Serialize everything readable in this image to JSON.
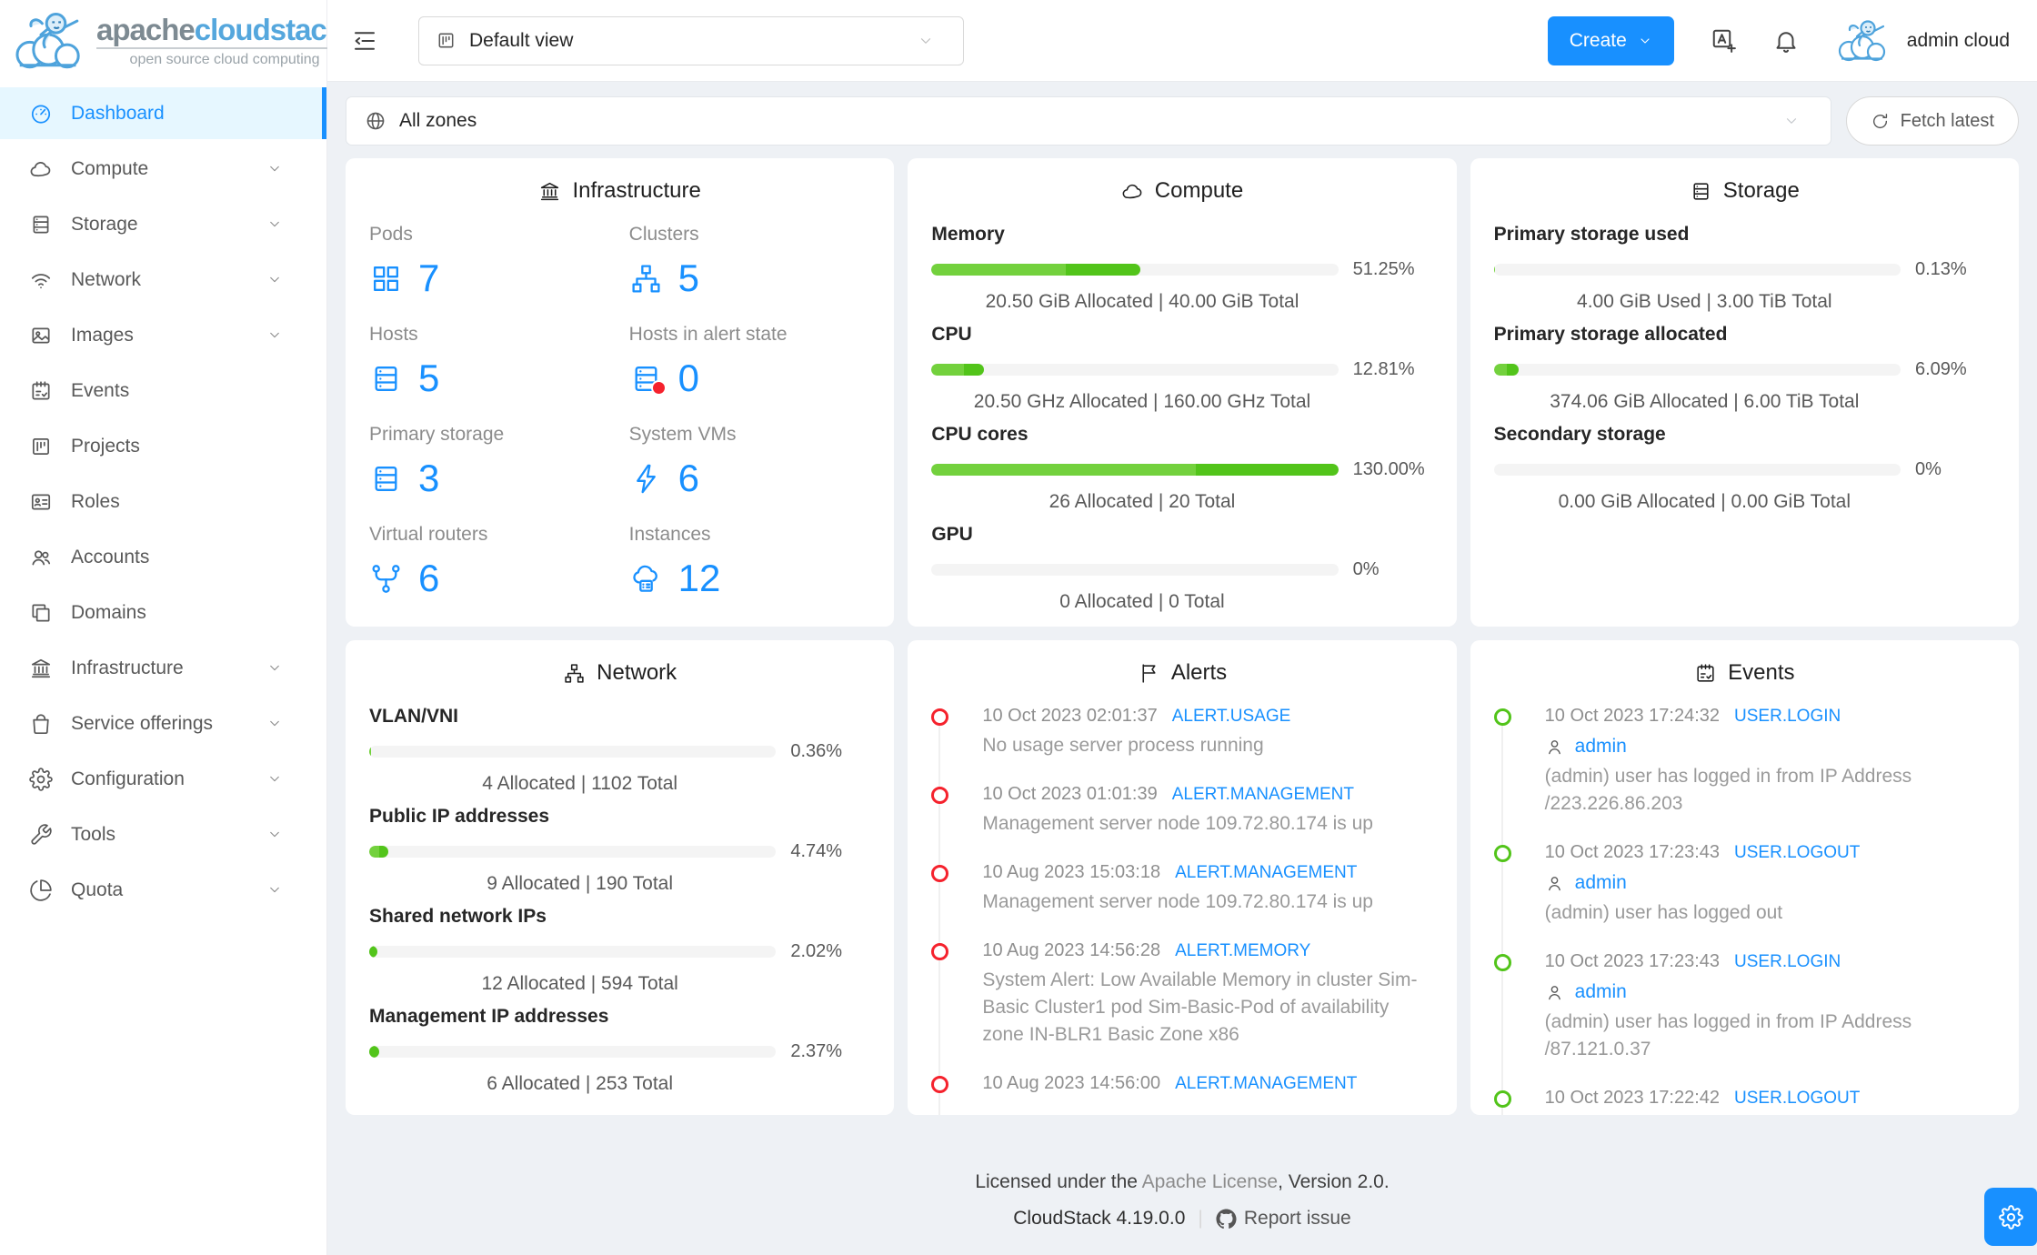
{
  "brand": {
    "title_gray": "apache",
    "title_blue": "cloudstack",
    "tm": "™",
    "subtitle": "open source cloud computing"
  },
  "colors": {
    "accent": "#1890ff",
    "progress_light": "#73d13d",
    "progress_dark": "#52c41a",
    "alert_dot": "#f5222d",
    "event_dot": "#52c41a",
    "active_bg": "#e6f7ff"
  },
  "sidebar": {
    "items": [
      {
        "label": "Dashboard"
      },
      {
        "label": "Compute"
      },
      {
        "label": "Storage"
      },
      {
        "label": "Network"
      },
      {
        "label": "Images"
      },
      {
        "label": "Events"
      },
      {
        "label": "Projects"
      },
      {
        "label": "Roles"
      },
      {
        "label": "Accounts"
      },
      {
        "label": "Domains"
      },
      {
        "label": "Infrastructure"
      },
      {
        "label": "Service offerings"
      },
      {
        "label": "Configuration"
      },
      {
        "label": "Tools"
      },
      {
        "label": "Quota"
      }
    ]
  },
  "topbar": {
    "view_select": "Default view",
    "create_label": "Create",
    "user_name": "admin cloud"
  },
  "zonebar": {
    "zone_select": "All zones",
    "fetch_label": "Fetch latest"
  },
  "cards": {
    "infrastructure": {
      "title": "Infrastructure",
      "stats": [
        {
          "label": "Pods",
          "value": "7"
        },
        {
          "label": "Clusters",
          "value": "5"
        },
        {
          "label": "Hosts",
          "value": "5"
        },
        {
          "label": "Hosts in alert state",
          "value": "0"
        },
        {
          "label": "Primary storage",
          "value": "3"
        },
        {
          "label": "System VMs",
          "value": "6"
        },
        {
          "label": "Virtual routers",
          "value": "6"
        },
        {
          "label": "Instances",
          "value": "12"
        }
      ]
    },
    "compute": {
      "title": "Compute",
      "metrics": [
        {
          "label": "Memory",
          "pct": "51.25%",
          "detail": "20.50 GiB Allocated | 40.00 GiB Total",
          "segments": {
            "light": 33,
            "dark": 18.25
          }
        },
        {
          "label": "CPU",
          "pct": "12.81%",
          "detail": "20.50 GHz Allocated | 160.00 GHz Total",
          "segments": {
            "light": 8,
            "dark": 4.81
          }
        },
        {
          "label": "CPU cores",
          "pct": "130.00%",
          "detail": "26 Allocated | 20 Total",
          "segments": {
            "light": 65,
            "dark": 35
          }
        },
        {
          "label": "GPU",
          "pct": "0%",
          "detail": "0 Allocated | 0 Total",
          "segments": {
            "light": 0,
            "dark": 0
          }
        }
      ]
    },
    "storage": {
      "title": "Storage",
      "metrics": [
        {
          "label": "Primary storage used",
          "pct": "0.13%",
          "detail": "4.00 GiB Used | 3.00 TiB Total",
          "segments": {
            "light": 0.13,
            "dark": 0
          }
        },
        {
          "label": "Primary storage allocated",
          "pct": "6.09%",
          "detail": "374.06 GiB Allocated | 6.00 TiB Total",
          "segments": {
            "light": 3.2,
            "dark": 2.89
          }
        },
        {
          "label": "Secondary storage",
          "pct": "0%",
          "detail": "0.00 GiB Allocated | 0.00 GiB Total",
          "segments": {
            "light": 0,
            "dark": 0
          }
        }
      ]
    },
    "network": {
      "title": "Network",
      "metrics": [
        {
          "label": "VLAN/VNI",
          "pct": "0.36%",
          "detail": "4 Allocated | 1102 Total",
          "segments": {
            "light": 0.36,
            "dark": 0
          }
        },
        {
          "label": "Public IP addresses",
          "pct": "4.74%",
          "detail": "9 Allocated | 190 Total",
          "segments": {
            "light": 2.4,
            "dark": 2.34
          }
        },
        {
          "label": "Shared network IPs",
          "pct": "2.02%",
          "detail": "12 Allocated | 594 Total",
          "segments": {
            "light": 0,
            "dark": 2.02
          }
        },
        {
          "label": "Management IP addresses",
          "pct": "2.37%",
          "detail": "6 Allocated | 253 Total",
          "segments": {
            "light": 0,
            "dark": 2.37
          }
        }
      ]
    },
    "alerts": {
      "title": "Alerts",
      "items": [
        {
          "time": "10 Oct 2023 02:01:37",
          "type": "ALERT.USAGE",
          "text": "No usage server process running"
        },
        {
          "time": "10 Oct 2023 01:01:39",
          "type": "ALERT.MANAGEMENT",
          "text": "Management server node 109.72.80.174 is up"
        },
        {
          "time": "10 Aug 2023 15:03:18",
          "type": "ALERT.MANAGEMENT",
          "text": "Management server node 109.72.80.174 is up"
        },
        {
          "time": "10 Aug 2023 14:56:28",
          "type": "ALERT.MEMORY",
          "text": "System Alert: Low Available Memory in cluster Sim-Basic Cluster1 pod Sim-Basic-Pod of availability zone IN-BLR1 Basic Zone x86"
        },
        {
          "time": "10 Aug 2023 14:56:00",
          "type": "ALERT.MANAGEMENT",
          "text": ""
        }
      ]
    },
    "events": {
      "title": "Events",
      "items": [
        {
          "time": "10 Oct 2023 17:24:32",
          "type": "USER.LOGIN",
          "user": "admin",
          "text": "(admin) user has logged in from IP Address /223.226.86.203"
        },
        {
          "time": "10 Oct 2023 17:23:43",
          "type": "USER.LOGOUT",
          "user": "admin",
          "text": "(admin) user has logged out"
        },
        {
          "time": "10 Oct 2023 17:23:43",
          "type": "USER.LOGIN",
          "user": "admin",
          "text": "(admin) user has logged in from IP Address /87.121.0.37"
        },
        {
          "time": "10 Oct 2023 17:22:42",
          "type": "USER.LOGOUT",
          "user": "",
          "text": ""
        }
      ]
    }
  },
  "footer": {
    "line1_prefix": "Licensed under the ",
    "line1_link": "Apache License",
    "line1_suffix": ", Version 2.0.",
    "version": "CloudStack 4.19.0.0",
    "report_label": "Report issue"
  }
}
